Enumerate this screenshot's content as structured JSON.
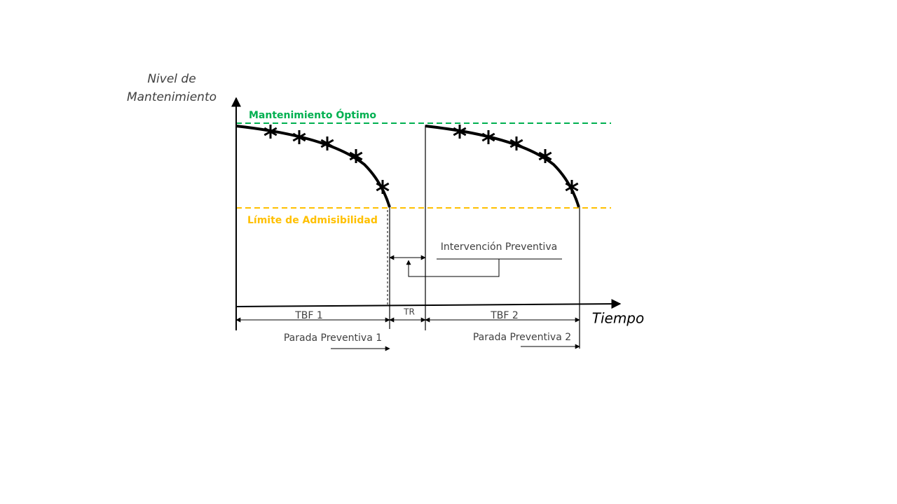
{
  "y_axis": {
    "label_line1": "Nivel de",
    "label_line2": "Mantenimiento"
  },
  "x_axis": {
    "label": "Tiempo"
  },
  "levels": {
    "optimal": "Mantenimiento Óptimo",
    "limit": "Límite de Admisibilidad"
  },
  "intervals": {
    "tbf1": "TBF 1",
    "tr": "TR",
    "tbf2": "TBF 2"
  },
  "stops": {
    "stop1": "Parada Preventiva 1",
    "stop2": "Parada Preventiva 2"
  },
  "intervention": "Intervención Preventiva"
}
